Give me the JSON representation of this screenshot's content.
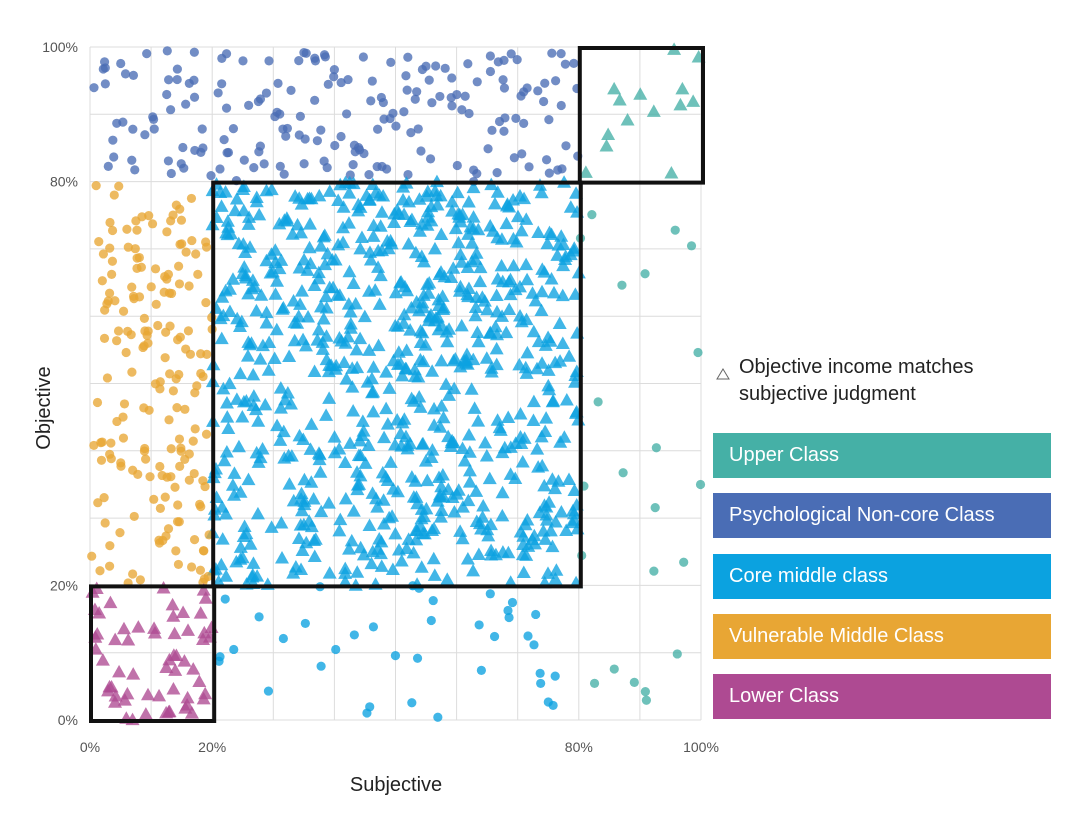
{
  "chart_data": {
    "type": "scatter",
    "xlabel": "Subjective",
    "ylabel": "Objective",
    "xlim": [
      0,
      100
    ],
    "ylim": [
      0,
      100
    ],
    "x_ticks": [
      "0%",
      "20%",
      "80%",
      "100%"
    ],
    "y_ticks": [
      "0%",
      "20%",
      "80%",
      "100%"
    ],
    "grid": true,
    "legend_placement": "right",
    "legend_note": "Objective income matches subjective judgment",
    "marker_note": "triangle",
    "thresholds": [
      20,
      80
    ],
    "highlight_boxes": [
      {
        "x": [
          0,
          20
        ],
        "y": [
          0,
          20
        ]
      },
      {
        "x": [
          20,
          80
        ],
        "y": [
          20,
          80
        ]
      },
      {
        "x": [
          80,
          100
        ],
        "y": [
          80,
          100
        ]
      }
    ],
    "series": [
      {
        "name": "Upper Class",
        "color": "#45B0A6",
        "regions": [
          {
            "x": [
              80,
              100
            ],
            "y": [
              80,
              100
            ],
            "marker": "triangle",
            "count": 14
          },
          {
            "x": [
              80,
              100
            ],
            "y": [
              0,
              80
            ],
            "marker": "circle",
            "count": 22
          }
        ]
      },
      {
        "name": "Psychological Non-core Class",
        "color": "#4A6DB5",
        "regions": [
          {
            "x": [
              0,
              80
            ],
            "y": [
              80,
              100
            ],
            "marker": "circle",
            "count": 190
          }
        ]
      },
      {
        "name": "Core middle class",
        "color": "#0BA2E0",
        "regions": [
          {
            "x": [
              20,
              80
            ],
            "y": [
              20,
              80
            ],
            "marker": "triangle",
            "count": 800
          },
          {
            "x": [
              20,
              80
            ],
            "y": [
              0,
              20
            ],
            "marker": "circle",
            "count": 38
          }
        ]
      },
      {
        "name": "Vulnerable Middle Class",
        "color": "#E8A634",
        "regions": [
          {
            "x": [
              0,
              20
            ],
            "y": [
              20,
              80
            ],
            "marker": "circle",
            "count": 180
          }
        ]
      },
      {
        "name": "Lower Class",
        "color": "#AE4A92",
        "regions": [
          {
            "x": [
              0,
              20
            ],
            "y": [
              0,
              20
            ],
            "marker": "triangle",
            "count": 60
          }
        ]
      }
    ]
  }
}
